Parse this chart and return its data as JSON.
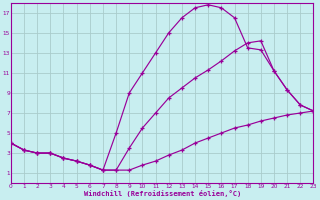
{
  "background_color": "#c8eef0",
  "line_color": "#990099",
  "grid_color": "#aacccc",
  "text_color": "#990099",
  "xlabel": "Windchill (Refroidissement éolien,°C)",
  "xlim": [
    0,
    23
  ],
  "ylim": [
    0,
    18
  ],
  "xticks": [
    0,
    1,
    2,
    3,
    4,
    5,
    6,
    7,
    8,
    9,
    10,
    11,
    12,
    13,
    14,
    15,
    16,
    17,
    18,
    19,
    20,
    21,
    22,
    23
  ],
  "yticks": [
    1,
    3,
    5,
    7,
    9,
    11,
    13,
    15,
    17
  ],
  "line1_x": [
    0,
    1,
    2,
    3,
    4,
    5,
    6,
    7,
    8,
    9,
    10,
    11,
    12,
    13,
    14,
    15,
    16,
    17,
    18,
    19,
    20,
    21,
    22,
    23
  ],
  "line1_y": [
    4.0,
    3.3,
    3.0,
    3.0,
    2.5,
    2.2,
    1.8,
    1.3,
    1.3,
    1.3,
    1.8,
    2.2,
    2.8,
    3.3,
    4.0,
    4.5,
    5.0,
    5.5,
    5.8,
    6.2,
    6.5,
    6.8,
    7.0,
    7.2
  ],
  "line2_x": [
    0,
    1,
    2,
    3,
    4,
    5,
    6,
    7,
    8,
    9,
    10,
    11,
    12,
    13,
    14,
    15,
    16,
    17,
    18,
    19,
    20,
    21,
    22,
    23
  ],
  "line2_y": [
    4.0,
    3.3,
    3.0,
    3.0,
    2.5,
    2.2,
    1.8,
    1.3,
    1.3,
    3.5,
    5.5,
    7.0,
    8.5,
    9.5,
    10.5,
    11.3,
    12.2,
    13.2,
    14.0,
    14.2,
    11.2,
    9.3,
    7.8,
    7.2
  ],
  "line3_x": [
    0,
    1,
    2,
    3,
    4,
    5,
    6,
    7,
    8,
    9,
    10,
    11,
    12,
    13,
    14,
    15,
    16,
    17,
    18,
    19,
    20,
    21,
    22,
    23
  ],
  "line3_y": [
    4.0,
    3.3,
    3.0,
    3.0,
    2.5,
    2.2,
    1.8,
    1.3,
    5.0,
    9.0,
    11.0,
    13.0,
    15.0,
    16.5,
    17.5,
    17.8,
    17.5,
    16.5,
    13.5,
    13.3,
    11.2,
    9.3,
    7.8,
    7.2
  ]
}
